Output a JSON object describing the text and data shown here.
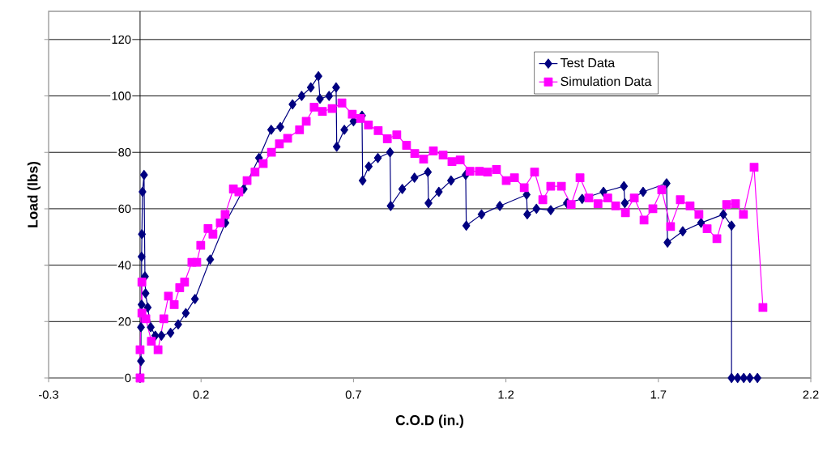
{
  "chart_data": {
    "type": "line",
    "xlabel": "C.O.D (in.)",
    "ylabel": "Load (lbs)",
    "xlim": [
      -0.3,
      2.2
    ],
    "xticks": [
      -0.3,
      0.2,
      0.7,
      1.2,
      1.7,
      2.2
    ],
    "ylim": [
      0,
      130
    ],
    "yticks": [
      0,
      20,
      40,
      60,
      80,
      100,
      120
    ],
    "grid": "y",
    "legend": "top right",
    "series": [
      {
        "name": "Test Data",
        "color": "#000080",
        "marker": "diamond",
        "x": [
          0,
          0.003,
          0.003,
          0.005,
          0.005,
          0.006,
          0.008,
          0.013,
          0.016,
          0.018,
          0.025,
          0.035,
          0.05,
          0.07,
          0.1,
          0.125,
          0.15,
          0.18,
          0.23,
          0.28,
          0.34,
          0.39,
          0.43,
          0.46,
          0.5,
          0.53,
          0.56,
          0.585,
          0.59,
          0.62,
          0.643,
          0.645,
          0.67,
          0.7,
          0.728,
          0.73,
          0.75,
          0.78,
          0.82,
          0.822,
          0.86,
          0.9,
          0.944,
          0.946,
          0.98,
          1.02,
          1.068,
          1.07,
          1.12,
          1.18,
          1.268,
          1.27,
          1.3,
          1.347,
          1.4,
          1.45,
          1.52,
          1.587,
          1.59,
          1.65,
          1.727,
          1.73,
          1.78,
          1.84,
          1.913,
          1.94,
          1.94,
          1.96,
          1.98,
          2.0,
          2.025
        ],
        "values": [
          0,
          6,
          18,
          26,
          43,
          51,
          66,
          72,
          36,
          30,
          25,
          18,
          15,
          15,
          16,
          19,
          23,
          28,
          42,
          55,
          67,
          78,
          88,
          89,
          97,
          100,
          103,
          107,
          99,
          100,
          103,
          82,
          88,
          91,
          93,
          70,
          75,
          78,
          80,
          61,
          67,
          71,
          73,
          62,
          66,
          70,
          72,
          54,
          58,
          61,
          65,
          58,
          60,
          59.5,
          62,
          63.5,
          66,
          68,
          62,
          66,
          69,
          48,
          52,
          55,
          58,
          54,
          0,
          0,
          0,
          0,
          0
        ]
      },
      {
        "name": "Simulation Data",
        "color": "#ff00ff",
        "marker": "square",
        "x": [
          0,
          0,
          0.006,
          0.006,
          0.019,
          0.037,
          0.059,
          0.078,
          0.093,
          0.112,
          0.13,
          0.146,
          0.17,
          0.186,
          0.199,
          0.223,
          0.239,
          0.263,
          0.279,
          0.306,
          0.324,
          0.351,
          0.377,
          0.404,
          0.431,
          0.457,
          0.484,
          0.523,
          0.545,
          0.571,
          0.598,
          0.63,
          0.662,
          0.696,
          0.723,
          0.749,
          0.781,
          0.811,
          0.842,
          0.874,
          0.901,
          0.93,
          0.962,
          0.994,
          1.023,
          1.05,
          1.082,
          1.113,
          1.14,
          1.169,
          1.201,
          1.228,
          1.26,
          1.294,
          1.321,
          1.347,
          1.382,
          1.414,
          1.443,
          1.472,
          1.502,
          1.534,
          1.56,
          1.592,
          1.621,
          1.653,
          1.682,
          1.711,
          1.74,
          1.772,
          1.804,
          1.833,
          1.86,
          1.892,
          1.924,
          1.953,
          1.979,
          2.014,
          2.043
        ],
        "values": [
          0,
          10,
          34,
          23,
          21,
          13,
          10,
          21,
          29,
          26,
          32,
          34,
          41,
          41,
          47,
          53,
          51,
          55,
          58,
          67,
          66,
          70,
          73,
          76,
          80,
          83,
          85,
          88,
          91,
          96,
          94.5,
          95.5,
          97.5,
          93.5,
          92,
          89.7,
          87.7,
          84.8,
          86.2,
          82.5,
          79.6,
          77.6,
          80.5,
          79,
          76.7,
          77.3,
          73.3,
          73.3,
          73,
          73.9,
          70,
          71,
          67.5,
          73,
          63.2,
          68,
          68,
          61.5,
          71,
          63.8,
          61.8,
          63.8,
          61,
          58.6,
          63.8,
          56,
          60,
          66.7,
          53.7,
          63.2,
          61,
          58,
          52.9,
          49.4,
          61.5,
          61.8,
          58,
          74.7,
          25
        ]
      }
    ]
  }
}
